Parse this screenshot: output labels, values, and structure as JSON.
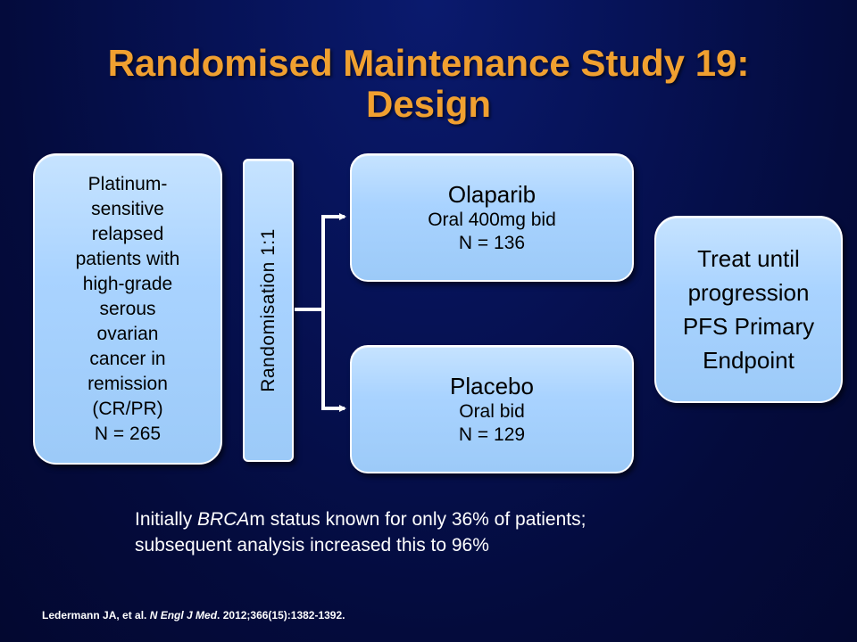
{
  "title": {
    "line1": "Randomised Maintenance Study 19:",
    "line2": "Design"
  },
  "population": {
    "lines": [
      "Platinum-",
      "sensitive",
      "relapsed",
      "patients with",
      "high-grade",
      "serous",
      "ovarian",
      "cancer in",
      "remission",
      "(CR/PR)",
      "N = 265"
    ]
  },
  "randomisation": {
    "label": "Randomisation  1:1"
  },
  "olaparib": {
    "name": "Olaparib",
    "dose": "Oral 400mg bid",
    "n": "N = 136"
  },
  "placebo": {
    "name": "Placebo",
    "dose": "Oral bid",
    "n": "N = 129"
  },
  "outcome": {
    "lines": [
      "Treat until",
      "progression",
      "PFS Primary",
      "Endpoint"
    ]
  },
  "note": {
    "prefix": "Initially ",
    "italic": "BRCA",
    "suffix": "m status known for only 36% of patients; subsequent analysis increased this to 96%"
  },
  "reference": {
    "authors": "Ledermann JA,  et al. ",
    "journal": "N Engl J Med",
    "details": ". 2012;366(15):1382-1392."
  },
  "colors": {
    "title": "#f0a030",
    "box_fill": "#a9d3ff",
    "background": "#061256",
    "connector": "#ffffff"
  }
}
